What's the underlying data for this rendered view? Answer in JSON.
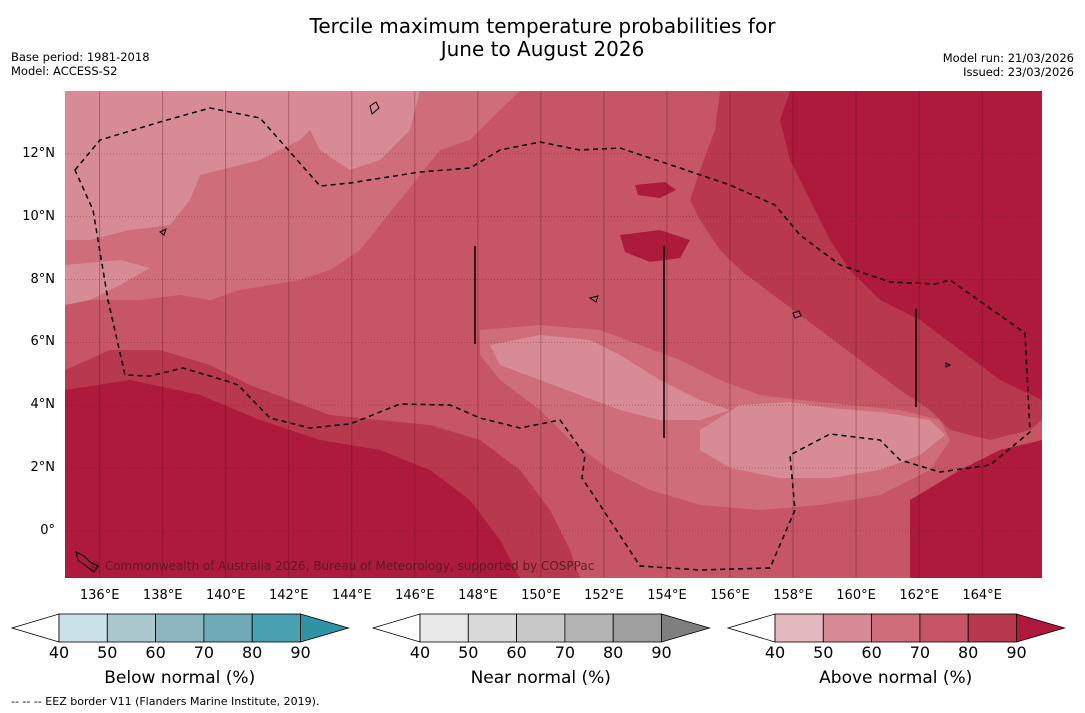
{
  "title": {
    "line1": "Tercile maximum temperature probabilities for",
    "line2": "June to August 2026"
  },
  "meta_left": {
    "base_period": "Base period: 1981-2018",
    "model": "Model: ACCESS-S2"
  },
  "meta_right": {
    "model_run": "Model run: 21/03/2026",
    "issued": "Issued: 23/03/2026"
  },
  "map": {
    "lat_labels": [
      "12°N",
      "10°N",
      "8°N",
      "6°N",
      "4°N",
      "2°N",
      "0°"
    ],
    "lat_values": [
      12,
      10,
      8,
      6,
      4,
      2,
      0
    ],
    "lon_labels": [
      "136°E",
      "138°E",
      "140°E",
      "142°E",
      "144°E",
      "146°E",
      "148°E",
      "150°E",
      "152°E",
      "154°E",
      "156°E",
      "158°E",
      "160°E",
      "162°E",
      "164°E"
    ],
    "lon_values": [
      136,
      138,
      140,
      142,
      144,
      146,
      148,
      150,
      152,
      154,
      156,
      158,
      160,
      162,
      164
    ],
    "lon_range": [
      134.9,
      165.9
    ],
    "lat_range": [
      -1.5,
      14
    ],
    "copyright": "© Commonwealth of Australia 2026, Bureau of Meteorology, supported by COSPPac"
  },
  "colorbars": [
    {
      "title": "Below normal (%)",
      "ticks": [
        "40",
        "50",
        "60",
        "70",
        "80",
        "90"
      ],
      "colors": [
        "#ffffff",
        "#c9e1e7",
        "#a9c7cc",
        "#8ab6c0",
        "#6eaab8",
        "#48a0b0",
        "#2f93a6"
      ]
    },
    {
      "title": "Near normal (%)",
      "ticks": [
        "40",
        "50",
        "60",
        "70",
        "80",
        "90"
      ],
      "colors": [
        "#ffffff",
        "#e8e8e8",
        "#d9d9d9",
        "#c8c8c8",
        "#b4b4b4",
        "#9f9f9f",
        "#7f7f7f"
      ]
    },
    {
      "title": "Above normal (%)",
      "ticks": [
        "40",
        "50",
        "60",
        "70",
        "80",
        "90"
      ],
      "colors": [
        "#ffffff",
        "#e3b8be",
        "#d78c95",
        "#cf6e7a",
        "#c65665",
        "#b8394d",
        "#ad1a3b"
      ]
    }
  ],
  "footnote": "--  --  -- EEZ border V11 (Flanders Marine Institute, 2019)."
}
